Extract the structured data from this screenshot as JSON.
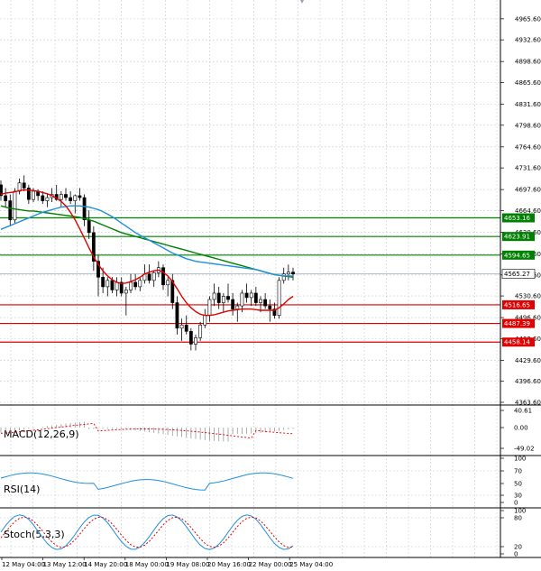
{
  "chart_data": {
    "type": "candlestick",
    "x_labels": [
      "12 May 04:00",
      "13 May 12:00",
      "14 May 20:00",
      "18 May 00:00",
      "19 May 08:00",
      "20 May 16:00",
      "22 May 00:00",
      "25 May 04:00"
    ],
    "main": {
      "ylim": [
        4363.6,
        4981.0
      ],
      "y_ticks": [
        "4965.60",
        "4932.60",
        "4898.60",
        "4865.60",
        "4831.60",
        "4798.60",
        "4764.60",
        "4731.60",
        "4697.60",
        "4664.60",
        "4630.60",
        "4596.60",
        "4563.60",
        "4530.60",
        "4496.60",
        "4463.60",
        "4429.60",
        "4396.60",
        "4363.60"
      ],
      "current_price": "4565.27",
      "levels": [
        {
          "value": 4653.16,
          "label": "4653.16",
          "color": "#008000"
        },
        {
          "value": 4623.91,
          "label": "4623.91",
          "color": "#008000"
        },
        {
          "value": 4594.65,
          "label": "4594.65",
          "color": "#008000"
        },
        {
          "value": 4516.65,
          "label": "4516.65",
          "color": "#e00000"
        },
        {
          "value": 4487.39,
          "label": "4487.39",
          "color": "#e00000"
        },
        {
          "value": 4458.14,
          "label": "4458.14",
          "color": "#e00000"
        }
      ],
      "candles": [
        [
          4705,
          4712,
          4680,
          4688
        ],
        [
          4688,
          4700,
          4670,
          4680
        ],
        [
          4680,
          4690,
          4640,
          4650
        ],
        [
          4650,
          4700,
          4645,
          4695
        ],
        [
          4695,
          4715,
          4690,
          4708
        ],
        [
          4708,
          4720,
          4695,
          4700
        ],
        [
          4700,
          4705,
          4675,
          4682
        ],
        [
          4682,
          4700,
          4678,
          4695
        ],
        [
          4695,
          4698,
          4680,
          4688
        ],
        [
          4688,
          4695,
          4675,
          4680
        ],
        [
          4680,
          4690,
          4670,
          4685
        ],
        [
          4685,
          4700,
          4678,
          4690
        ],
        [
          4690,
          4705,
          4680,
          4682
        ],
        [
          4682,
          4695,
          4670,
          4690
        ],
        [
          4690,
          4700,
          4680,
          4685
        ],
        [
          4685,
          4695,
          4675,
          4680
        ],
        [
          4680,
          4690,
          4660,
          4688
        ],
        [
          4688,
          4700,
          4680,
          4685
        ],
        [
          4685,
          4690,
          4640,
          4650
        ],
        [
          4650,
          4665,
          4620,
          4630
        ],
        [
          4630,
          4640,
          4570,
          4585
        ],
        [
          4585,
          4595,
          4530,
          4560
        ],
        [
          4560,
          4575,
          4535,
          4545
        ],
        [
          4545,
          4560,
          4530,
          4555
        ],
        [
          4555,
          4560,
          4535,
          4540
        ],
        [
          4540,
          4560,
          4530,
          4552
        ],
        [
          4552,
          4560,
          4530,
          4535
        ],
        [
          4535,
          4545,
          4500,
          4540
        ],
        [
          4540,
          4565,
          4535,
          4552
        ],
        [
          4552,
          4565,
          4540,
          4545
        ],
        [
          4545,
          4560,
          4538,
          4555
        ],
        [
          4555,
          4580,
          4550,
          4565
        ],
        [
          4565,
          4580,
          4550,
          4555
        ],
        [
          4555,
          4570,
          4545,
          4567
        ],
        [
          4567,
          4585,
          4560,
          4575
        ],
        [
          4575,
          4580,
          4540,
          4548
        ],
        [
          4548,
          4560,
          4530,
          4555
        ],
        [
          4555,
          4565,
          4510,
          4520
        ],
        [
          4520,
          4530,
          4470,
          4480
        ],
        [
          4480,
          4495,
          4460,
          4485
        ],
        [
          4485,
          4500,
          4470,
          4475
        ],
        [
          4475,
          4480,
          4445,
          4455
        ],
        [
          4455,
          4470,
          4445,
          4465
        ],
        [
          4465,
          4490,
          4460,
          4485
        ],
        [
          4485,
          4510,
          4480,
          4500
        ],
        [
          4500,
          4530,
          4490,
          4525
        ],
        [
          4525,
          4550,
          4515,
          4535
        ],
        [
          4535,
          4545,
          4510,
          4520
        ],
        [
          4520,
          4535,
          4505,
          4530
        ],
        [
          4530,
          4550,
          4520,
          4525
        ],
        [
          4525,
          4535,
          4500,
          4510
        ],
        [
          4510,
          4520,
          4490,
          4515
        ],
        [
          4515,
          4540,
          4505,
          4535
        ],
        [
          4535,
          4550,
          4520,
          4528
        ],
        [
          4528,
          4540,
          4515,
          4535
        ],
        [
          4535,
          4545,
          4515,
          4520
        ],
        [
          4520,
          4530,
          4505,
          4525
        ],
        [
          4525,
          4535,
          4510,
          4515
        ],
        [
          4515,
          4525,
          4490,
          4510
        ],
        [
          4510,
          4520,
          4495,
          4500
        ],
        [
          4500,
          4560,
          4495,
          4555
        ],
        [
          4555,
          4575,
          4550,
          4565
        ],
        [
          4565,
          4580,
          4555,
          4568
        ],
        [
          4568,
          4575,
          4555,
          4565
        ]
      ],
      "ma_fast_color": "#e00000",
      "ma_mid_color": "#1e8fe0",
      "ma_slow_color": "#008000",
      "ma_fast": [
        4690,
        4692,
        4693,
        4694,
        4696,
        4697,
        4697,
        4696,
        4695,
        4693,
        4691,
        4688,
        4684,
        4679,
        4672,
        4662,
        4650,
        4636,
        4621,
        4606,
        4592,
        4580,
        4570,
        4562,
        4556,
        4552,
        4550,
        4551,
        4553,
        4556,
        4560,
        4565,
        4568,
        4570,
        4571,
        4568,
        4562,
        4553,
        4542,
        4530,
        4520,
        4512,
        4506,
        4502,
        4500,
        4500,
        4501,
        4503,
        4505,
        4507,
        4508,
        4509,
        4510,
        4510,
        4510,
        4509,
        4508,
        4508,
        4508,
        4508,
        4512,
        4518,
        4525,
        4530
      ],
      "ma_mid": [
        4635,
        4638,
        4641,
        4644,
        4647,
        4650,
        4653,
        4656,
        4659,
        4662,
        4664,
        4666,
        4668,
        4670,
        4671,
        4672,
        4672,
        4672,
        4671,
        4670,
        4668,
        4666,
        4663,
        4659,
        4655,
        4650,
        4645,
        4640,
        4635,
        4630,
        4626,
        4622,
        4618,
        4614,
        4610,
        4606,
        4602,
        4598,
        4595,
        4592,
        4589,
        4587,
        4585,
        4584,
        4583,
        4582,
        4581,
        4580,
        4579,
        4578,
        4577,
        4576,
        4575,
        4574,
        4573,
        4572,
        4570,
        4568,
        4566,
        4564,
        4563,
        4562,
        4562,
        4562
      ],
      "ma_slow": [
        4672,
        4670,
        4668,
        4667,
        4666,
        4665,
        4664,
        4664,
        4663,
        4662,
        4661,
        4660,
        4659,
        4658,
        4657,
        4656,
        4655,
        4654,
        4652,
        4650,
        4648,
        4645,
        4642,
        4639,
        4636,
        4633,
        4630,
        4628,
        4626,
        4624,
        4622,
        4620,
        4618,
        4616,
        4614,
        4612,
        4610,
        4608,
        4606,
        4604,
        4602,
        4600,
        4598,
        4596,
        4594,
        4592,
        4590,
        4588,
        4586,
        4584,
        4582,
        4580,
        4578,
        4576,
        4574,
        4572,
        4570,
        4568,
        4566,
        4564,
        4563,
        4562,
        4561,
        4560
      ]
    },
    "macd": {
      "label": "MACD(12,26,9)",
      "y_ticks": [
        "40.61",
        "0.00",
        "-49.02"
      ]
    },
    "rsi": {
      "label": "RSI(14)",
      "y_ticks": [
        "100",
        "70",
        "50",
        "30",
        "0"
      ]
    },
    "stoch": {
      "label": "Stoch(5,3,3)",
      "y_ticks": [
        "100",
        "80",
        "20",
        "0"
      ]
    }
  }
}
